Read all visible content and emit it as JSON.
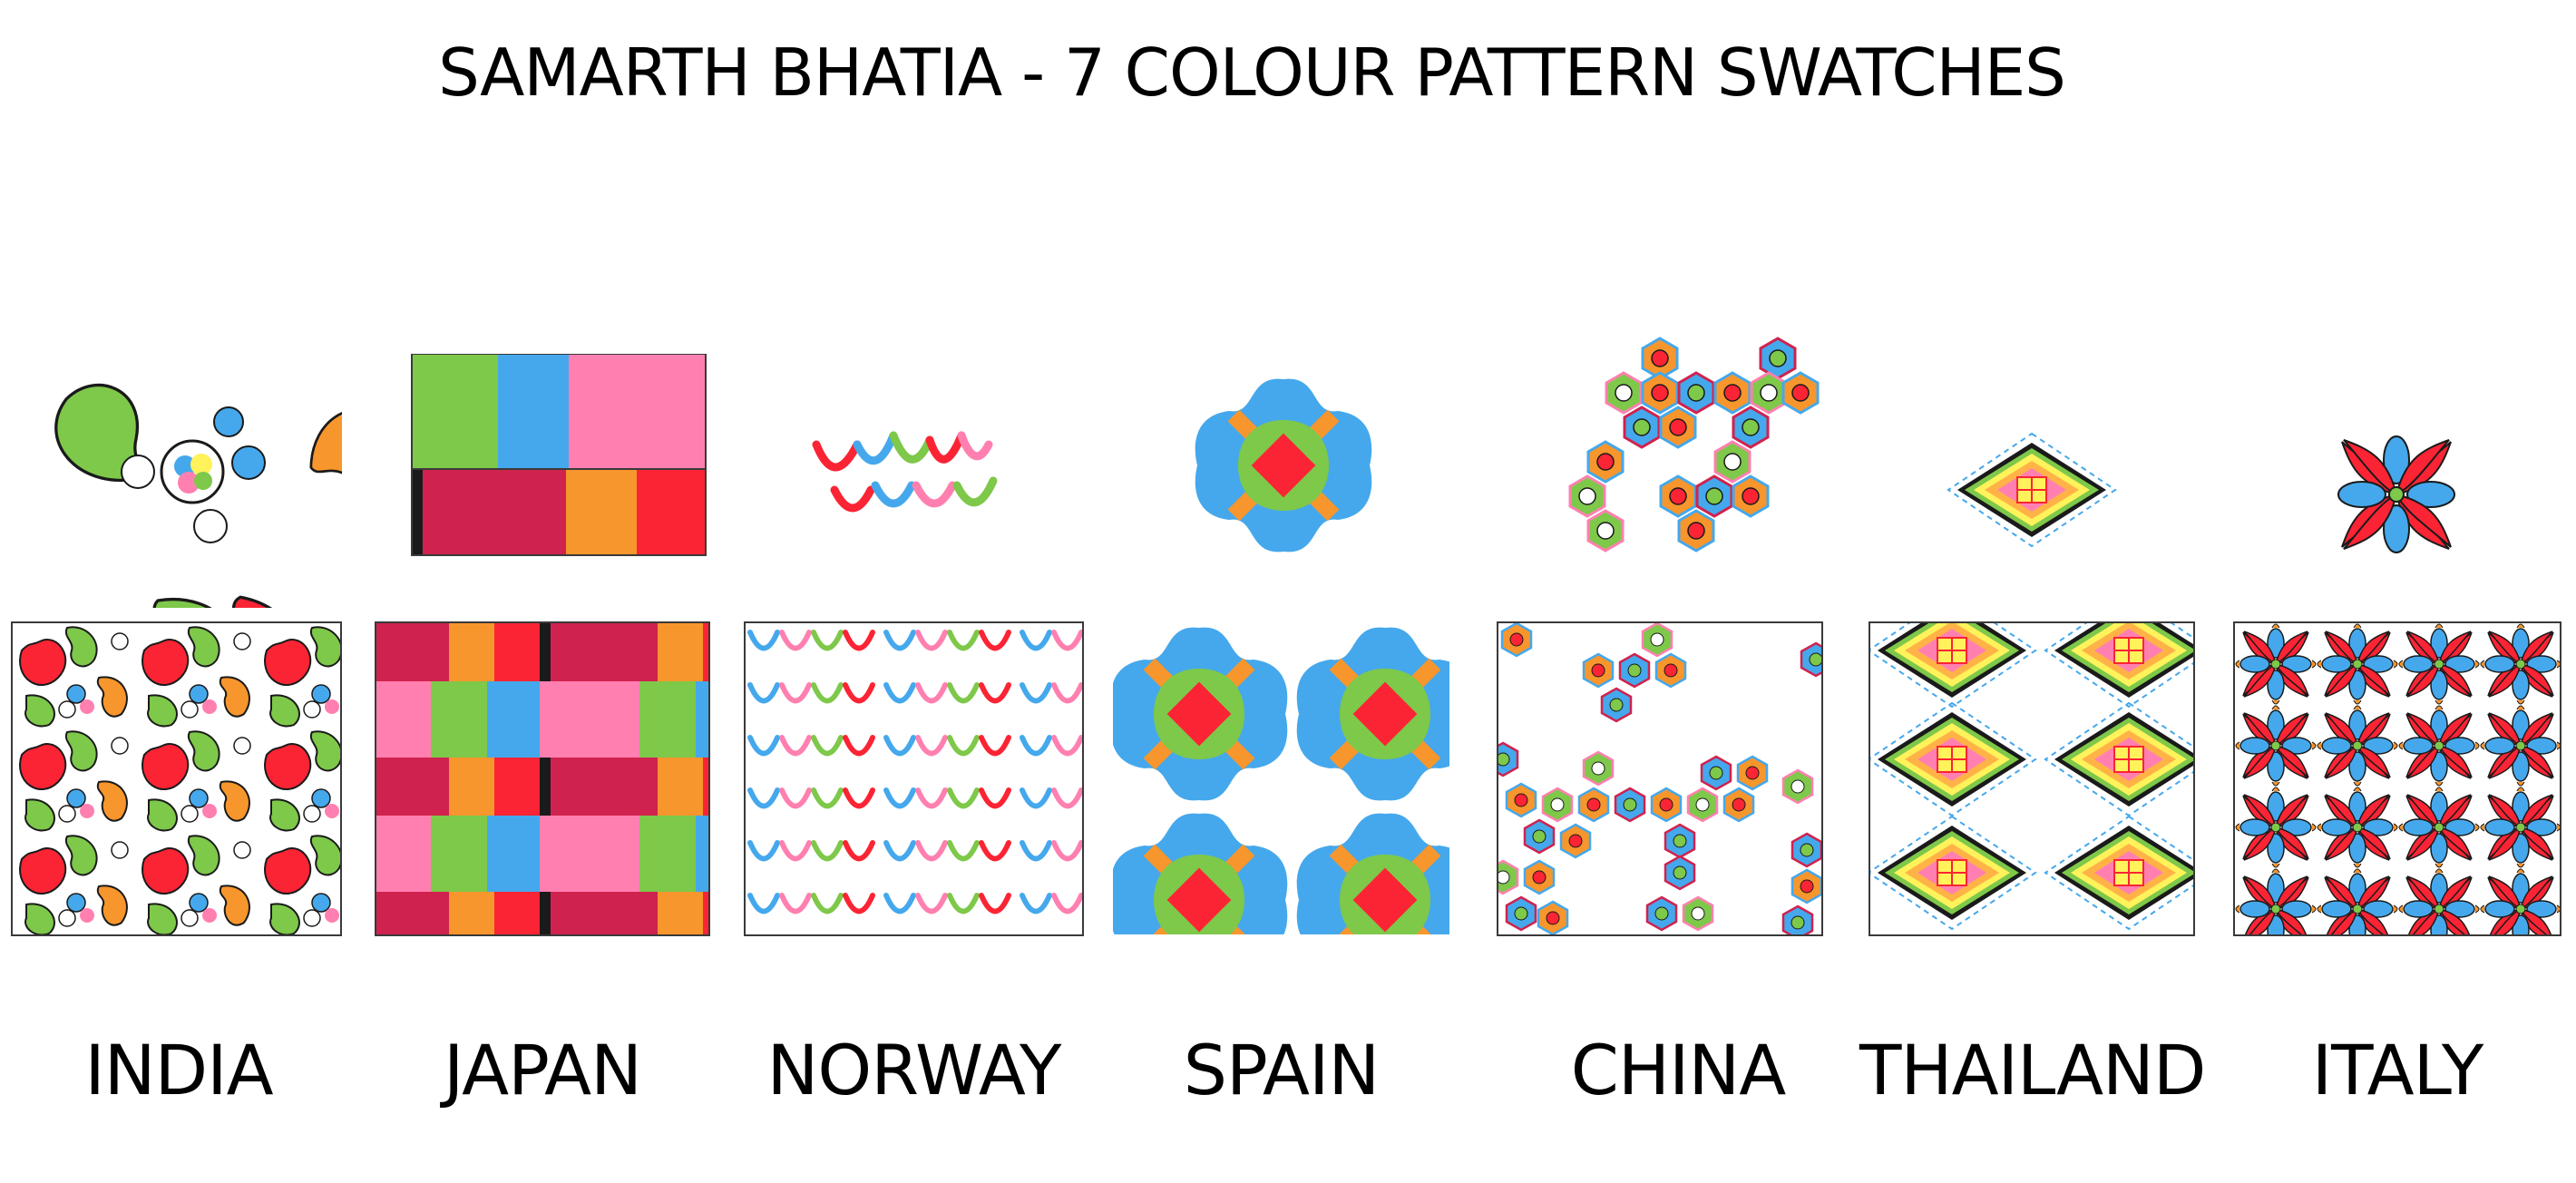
{
  "title": "SAMARTH BHATIA - 7 COLOUR PATTERN SWATCHES",
  "palette": {
    "green": "#7ec84a",
    "blue": "#45a8ec",
    "pink": "#ff80b0",
    "crimson": "#d0224e",
    "orange": "#f7962c",
    "red": "#fb2434",
    "yellow": "#fff25a",
    "black": "#1a1a1a"
  },
  "swatches": [
    {
      "country": "INDIA",
      "motif": "paisley-cluster-icon"
    },
    {
      "country": "JAPAN",
      "motif": "color-block-grid-icon"
    },
    {
      "country": "NORWAY",
      "motif": "bird-flock-icon"
    },
    {
      "country": "SPAIN",
      "motif": "quatrefoil-tile-icon"
    },
    {
      "country": "CHINA",
      "motif": "hexagon-cluster-icon"
    },
    {
      "country": "THAILAND",
      "motif": "diamond-lattice-icon"
    },
    {
      "country": "ITALY",
      "motif": "majolica-star-icon"
    }
  ]
}
